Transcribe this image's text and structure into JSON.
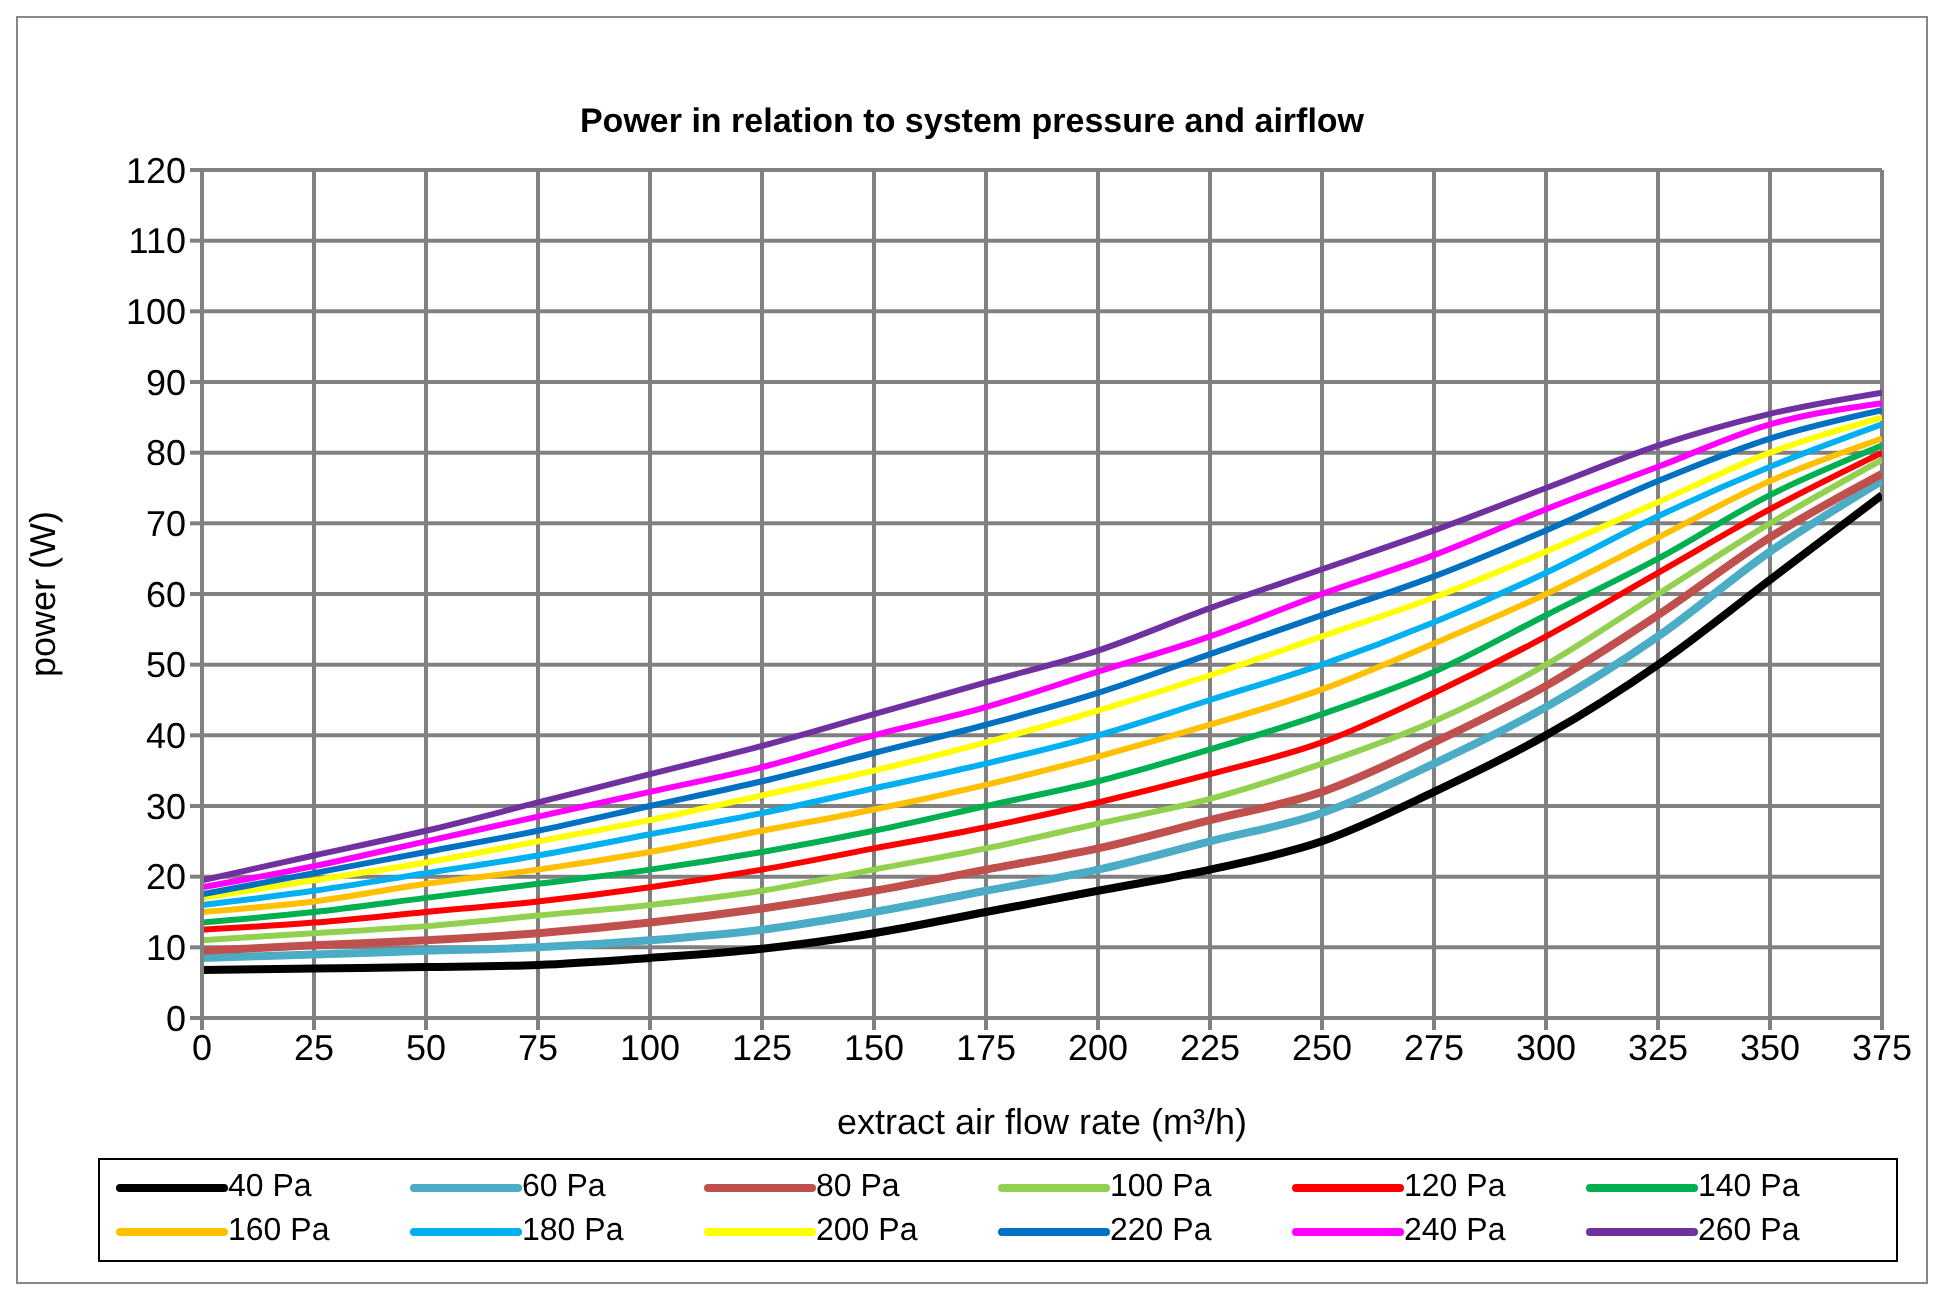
{
  "chart_data": {
    "type": "line",
    "title": "Power in relation to system pressure and airflow",
    "xlabel": "extract air flow rate (m³/h)",
    "ylabel": "power (W)",
    "x": [
      0,
      25,
      50,
      75,
      100,
      125,
      150,
      175,
      200,
      225,
      250,
      275,
      300,
      325,
      350,
      375
    ],
    "xlim": [
      0,
      375
    ],
    "xticks": [
      0,
      25,
      50,
      75,
      100,
      125,
      150,
      175,
      200,
      225,
      250,
      275,
      300,
      325,
      350,
      375
    ],
    "ylim": [
      0,
      120
    ],
    "yticks": [
      0,
      10,
      20,
      30,
      40,
      50,
      60,
      70,
      80,
      90,
      100,
      110,
      120
    ],
    "grid": true,
    "legend": "bottom",
    "marker": "none",
    "line_style": "solid",
    "series": [
      {
        "name": "40 Pa",
        "color": "#000000",
        "values": [
          6.8,
          7,
          7.2,
          7.5,
          8.5,
          9.8,
          12,
          15,
          18,
          21,
          25,
          32,
          40,
          50,
          62,
          74
        ]
      },
      {
        "name": "60 Pa",
        "color": "#4bacc6",
        "values": [
          8.5,
          9,
          9.5,
          10,
          11,
          12.5,
          15,
          18,
          21,
          25,
          29,
          36,
          44,
          54,
          66,
          76
        ]
      },
      {
        "name": "80 Pa",
        "color": "#c0504d",
        "values": [
          9.5,
          10.3,
          11,
          12,
          13.5,
          15.5,
          18,
          21,
          24,
          28,
          32,
          39,
          47,
          57,
          68,
          77
        ]
      },
      {
        "name": "100 Pa",
        "color": "#92d050",
        "values": [
          11,
          12,
          13,
          14.5,
          16,
          18,
          21,
          24,
          27.5,
          31,
          36,
          42,
          50,
          60,
          70,
          79
        ]
      },
      {
        "name": "120 Pa",
        "color": "#ff0000",
        "values": [
          12.5,
          13.5,
          15,
          16.5,
          18.5,
          21,
          24,
          27,
          30.5,
          34.5,
          39,
          46,
          54,
          63,
          72,
          80
        ]
      },
      {
        "name": "140 Pa",
        "color": "#00b050",
        "values": [
          13.5,
          15,
          17,
          19,
          21,
          23.5,
          26.5,
          30,
          33.5,
          38,
          43,
          49,
          57,
          65,
          74,
          81
        ]
      },
      {
        "name": "160 Pa",
        "color": "#ffc000",
        "values": [
          15,
          16.5,
          19,
          21,
          23.5,
          26.5,
          29.5,
          33,
          37,
          41.5,
          46.5,
          53,
          60,
          68,
          76,
          82
        ]
      },
      {
        "name": "180 Pa",
        "color": "#00b0f0",
        "values": [
          16,
          18,
          20.5,
          23,
          26,
          29,
          32.5,
          36,
          40,
          45,
          50,
          56,
          63,
          71,
          78,
          84
        ]
      },
      {
        "name": "200 Pa",
        "color": "#ffff00",
        "values": [
          17,
          19.5,
          22,
          25,
          28,
          31.5,
          35,
          39,
          43.5,
          48.5,
          54,
          59.5,
          66,
          73,
          80,
          85
        ]
      },
      {
        "name": "220 Pa",
        "color": "#0070c0",
        "values": [
          17.5,
          20.5,
          23.5,
          26.5,
          30,
          33.5,
          37.5,
          41.5,
          46,
          51.5,
          57,
          62.5,
          69,
          76,
          82,
          86
        ]
      },
      {
        "name": "240 Pa",
        "color": "#ff00ff",
        "values": [
          18.5,
          21.5,
          25,
          28.5,
          32,
          35.5,
          40,
          44,
          49,
          54,
          60,
          65.5,
          72,
          78,
          84,
          87
        ]
      },
      {
        "name": "260 Pa",
        "color": "#7030a0",
        "values": [
          19.5,
          23,
          26.5,
          30.5,
          34.5,
          38.5,
          43,
          47.5,
          52,
          58,
          63.5,
          69,
          75,
          81,
          85.5,
          88.5
        ]
      }
    ]
  }
}
